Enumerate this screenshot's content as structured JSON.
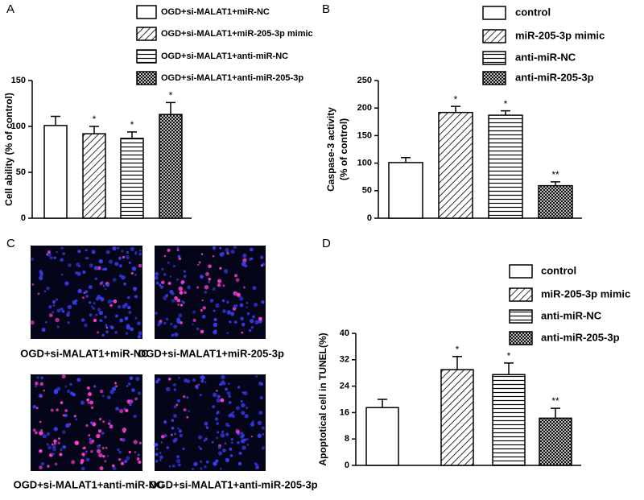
{
  "chart_data": [
    {
      "type": "bar",
      "panel_label": "A",
      "y_label": [
        "Cell ability (% of control)"
      ],
      "ylim": [
        0,
        150
      ],
      "yticks": [
        0,
        50,
        100,
        150
      ],
      "color": "#000000",
      "series": [
        {
          "name": "OGD+si-MALAT1+miR-NC",
          "pattern": "none",
          "values": [
            101
          ],
          "errors": [
            10
          ]
        },
        {
          "name": "OGD+si-MALAT1+miR-205-3p mimic",
          "pattern": "diagonal",
          "values": [
            92
          ],
          "errors": [
            8
          ],
          "annotation": "*"
        },
        {
          "name": "OGD+si-MALAT1+anti-miR-NC",
          "pattern": "horizontal",
          "values": [
            87
          ],
          "errors": [
            7
          ],
          "annotation": "*"
        },
        {
          "name": "OGD+si-MALAT1+anti-miR-205-3p",
          "pattern": "crosshatch",
          "values": [
            113
          ],
          "errors": [
            13
          ],
          "annotation": "*"
        }
      ]
    },
    {
      "type": "bar",
      "panel_label": "B",
      "y_label": [
        "Caspase-3 activity",
        "(% of control)"
      ],
      "ylim": [
        0,
        250
      ],
      "yticks": [
        0,
        50,
        100,
        150,
        200,
        250
      ],
      "color": "#000000",
      "series": [
        {
          "name": "control",
          "pattern": "none",
          "values": [
            101
          ],
          "errors": [
            9
          ]
        },
        {
          "name": "miR-205-3p mimic",
          "pattern": "diagonal",
          "values": [
            192
          ],
          "errors": [
            11
          ],
          "annotation": "*"
        },
        {
          "name": "anti-miR-NC",
          "pattern": "horizontal",
          "values": [
            187
          ],
          "errors": [
            8
          ],
          "annotation": "*"
        },
        {
          "name": "anti-miR-205-3p",
          "pattern": "crosshatch",
          "values": [
            59
          ],
          "errors": [
            7
          ],
          "annotation": "**"
        }
      ]
    },
    {
      "type": "bar",
      "panel_label": "D",
      "y_label": [
        "Apoptotical cell in TUNEL(%)"
      ],
      "ylim": [
        0,
        40
      ],
      "yticks": [
        0,
        8,
        16,
        24,
        32,
        40
      ],
      "color": "#000000",
      "series": [
        {
          "name": "control",
          "pattern": "none",
          "values": [
            17.5
          ],
          "errors": [
            2.5
          ]
        },
        {
          "name": "miR-205-3p mimic",
          "pattern": "diagonal",
          "values": [
            29
          ],
          "errors": [
            4
          ],
          "annotation": "*"
        },
        {
          "name": "anti-miR-NC",
          "pattern": "horizontal",
          "values": [
            27.5
          ],
          "errors": [
            3.5
          ],
          "annotation": "*"
        },
        {
          "name": "anti-miR-205-3p",
          "pattern": "crosshatch",
          "values": [
            14.3
          ],
          "errors": [
            3
          ],
          "annotation": "**"
        }
      ]
    }
  ],
  "images": {
    "panel_label": "C",
    "captions": [
      "OGD+si-MALAT1+miR-NC",
      "OGD+si-MALAT1+miR-205-3p",
      "OGD+si-MALAT1+anti-miR-NC",
      "OGD+si-MALAT1+anti-miR-205-3p"
    ]
  }
}
